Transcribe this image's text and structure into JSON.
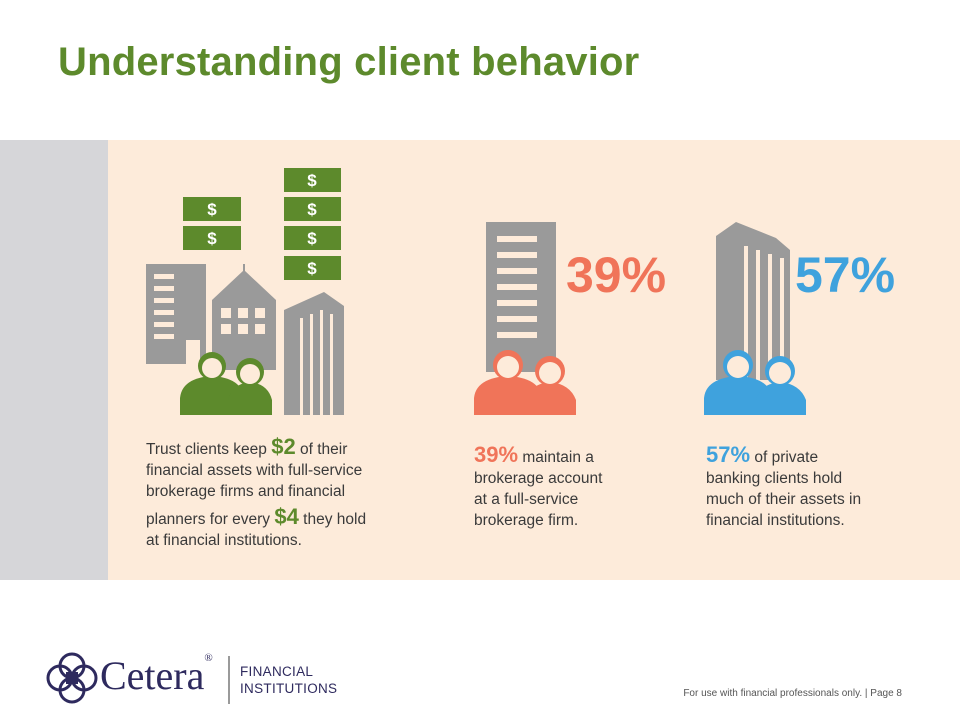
{
  "title": "Understanding client behavior",
  "colors": {
    "green": "#5d8a2c",
    "orange": "#f07459",
    "blue": "#3fa2dd",
    "gray": "#9a9a9a",
    "band": "#fdebda"
  },
  "icons": [
    "dollar-bill-icon",
    "office-building-icon",
    "government-building-icon",
    "skyscraper-icon",
    "client-couple-icon"
  ],
  "dollar_symbol": "$",
  "stats": [
    {
      "id": "trust",
      "line1_before": "Trust clients keep ",
      "amount1": "$2",
      "line1_after": " of their",
      "line2": "financial assets with full-service",
      "line3": "brokerage firms and financial",
      "line4_before": "planners for every ",
      "amount2": "$4",
      "line4_after": " they hold",
      "line5": "at  financial institutions."
    },
    {
      "id": "brokerage",
      "big": "39%",
      "highlight": "39%",
      "line1_after": " maintain a",
      "line2": "brokerage account",
      "line3": "at a full-service",
      "line4": "brokerage firm."
    },
    {
      "id": "private-banking",
      "big": "57%",
      "highlight": "57%",
      "line1_after": " of private",
      "line2": "banking clients hold",
      "line3": "much of their assets in",
      "line4": "financial institutions."
    }
  ],
  "logo": {
    "name": "Cetera",
    "registered": "®",
    "sub1": "FINANCIAL",
    "sub2": "INSTITUTIONS"
  },
  "footer": {
    "disclaimer": "For use with financial professionals only.",
    "separator": "|",
    "page": "Page 8"
  }
}
